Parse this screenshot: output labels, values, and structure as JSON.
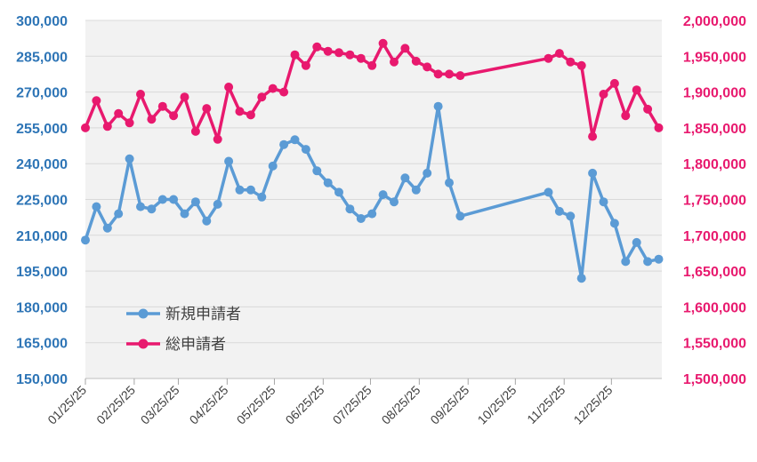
{
  "chart_data": {
    "type": "line",
    "title": "",
    "xlabel": "",
    "ylabel": "",
    "y_left_lim": [
      150000,
      300000
    ],
    "y_right_lim": [
      1500000,
      2000000
    ],
    "grid": true,
    "legend_position": "bottom-left",
    "x_ticks": [
      "01/25/25",
      "02/25/25",
      "03/25/25",
      "04/25/25",
      "05/25/25",
      "06/25/25",
      "07/25/25",
      "08/25/25",
      "09/25/25",
      "10/25/25",
      "11/25/25",
      "12/25/25"
    ],
    "y_left_ticks": [
      "150,000",
      "165,000",
      "180,000",
      "195,000",
      "210,000",
      "225,000",
      "240,000",
      "255,000",
      "270,000",
      "285,000",
      "300,000"
    ],
    "y_right_ticks": [
      "1,500,000",
      "1,550,000",
      "1,600,000",
      "1,650,000",
      "1,700,000",
      "1,750,000",
      "1,800,000",
      "1,850,000",
      "1,900,000",
      "1,950,000",
      "2,000,000"
    ],
    "series": [
      {
        "name": "新規申請者",
        "axis": "left",
        "color": "#5B9BD5",
        "points": [
          [
            "2025-01-25",
            208000
          ],
          [
            "2025-02-01",
            222000
          ],
          [
            "2025-02-08",
            213000
          ],
          [
            "2025-02-15",
            219000
          ],
          [
            "2025-02-22",
            242000
          ],
          [
            "2025-03-01",
            222000
          ],
          [
            "2025-03-08",
            221000
          ],
          [
            "2025-03-15",
            225000
          ],
          [
            "2025-03-22",
            225000
          ],
          [
            "2025-03-29",
            219000
          ],
          [
            "2025-04-05",
            224000
          ],
          [
            "2025-04-12",
            216000
          ],
          [
            "2025-04-19",
            223000
          ],
          [
            "2025-04-26",
            241000
          ],
          [
            "2025-05-03",
            229000
          ],
          [
            "2025-05-10",
            229000
          ],
          [
            "2025-05-17",
            226000
          ],
          [
            "2025-05-24",
            239000
          ],
          [
            "2025-05-31",
            248000
          ],
          [
            "2025-06-07",
            250000
          ],
          [
            "2025-06-14",
            246000
          ],
          [
            "2025-06-21",
            237000
          ],
          [
            "2025-06-28",
            232000
          ],
          [
            "2025-07-05",
            228000
          ],
          [
            "2025-07-12",
            221000
          ],
          [
            "2025-07-19",
            217000
          ],
          [
            "2025-07-26",
            219000
          ],
          [
            "2025-08-02",
            227000
          ],
          [
            "2025-08-09",
            224000
          ],
          [
            "2025-08-16",
            234000
          ],
          [
            "2025-08-23",
            229000
          ],
          [
            "2025-08-30",
            236000
          ],
          [
            "2025-09-06",
            264000
          ],
          [
            "2025-09-13",
            232000
          ],
          [
            "2025-09-20",
            218000
          ],
          [
            "2025-11-15",
            228000
          ],
          [
            "2025-11-22",
            220000
          ],
          [
            "2025-11-29",
            218000
          ],
          [
            "2025-12-06",
            192000
          ],
          [
            "2025-12-13",
            236000
          ],
          [
            "2025-12-20",
            224000
          ],
          [
            "2025-12-27",
            215000
          ],
          [
            "2026-01-03",
            199000
          ],
          [
            "2026-01-10",
            207000
          ],
          [
            "2026-01-17",
            199000
          ],
          [
            "2026-01-24",
            200000
          ]
        ]
      },
      {
        "name": "総申請者",
        "axis": "right",
        "color": "#E8196E",
        "points": [
          [
            "2025-01-25",
            1850000
          ],
          [
            "2025-02-01",
            1888000
          ],
          [
            "2025-02-08",
            1852000
          ],
          [
            "2025-02-15",
            1870000
          ],
          [
            "2025-02-22",
            1857000
          ],
          [
            "2025-03-01",
            1897000
          ],
          [
            "2025-03-08",
            1862000
          ],
          [
            "2025-03-15",
            1880000
          ],
          [
            "2025-03-22",
            1867000
          ],
          [
            "2025-03-29",
            1893000
          ],
          [
            "2025-04-05",
            1845000
          ],
          [
            "2025-04-12",
            1877000
          ],
          [
            "2025-04-19",
            1834000
          ],
          [
            "2025-04-26",
            1907000
          ],
          [
            "2025-05-03",
            1873000
          ],
          [
            "2025-05-10",
            1868000
          ],
          [
            "2025-05-17",
            1893000
          ],
          [
            "2025-05-24",
            1905000
          ],
          [
            "2025-05-31",
            1900000
          ],
          [
            "2025-06-07",
            1952000
          ],
          [
            "2025-06-14",
            1937000
          ],
          [
            "2025-06-21",
            1963000
          ],
          [
            "2025-06-28",
            1957000
          ],
          [
            "2025-07-05",
            1955000
          ],
          [
            "2025-07-12",
            1952000
          ],
          [
            "2025-07-19",
            1947000
          ],
          [
            "2025-07-26",
            1937000
          ],
          [
            "2025-08-02",
            1968000
          ],
          [
            "2025-08-09",
            1942000
          ],
          [
            "2025-08-16",
            1961000
          ],
          [
            "2025-08-23",
            1943000
          ],
          [
            "2025-08-30",
            1935000
          ],
          [
            "2025-09-06",
            1925000
          ],
          [
            "2025-09-13",
            1925000
          ],
          [
            "2025-09-20",
            1923000
          ],
          [
            "2025-11-15",
            1947000
          ],
          [
            "2025-11-22",
            1954000
          ],
          [
            "2025-11-29",
            1942000
          ],
          [
            "2025-12-06",
            1937000
          ],
          [
            "2025-12-13",
            1838000
          ],
          [
            "2025-12-20",
            1897000
          ],
          [
            "2025-12-27",
            1912000
          ],
          [
            "2026-01-03",
            1867000
          ],
          [
            "2026-01-10",
            1903000
          ],
          [
            "2026-01-17",
            1876000
          ],
          [
            "2026-01-24",
            1850000
          ]
        ]
      }
    ]
  }
}
